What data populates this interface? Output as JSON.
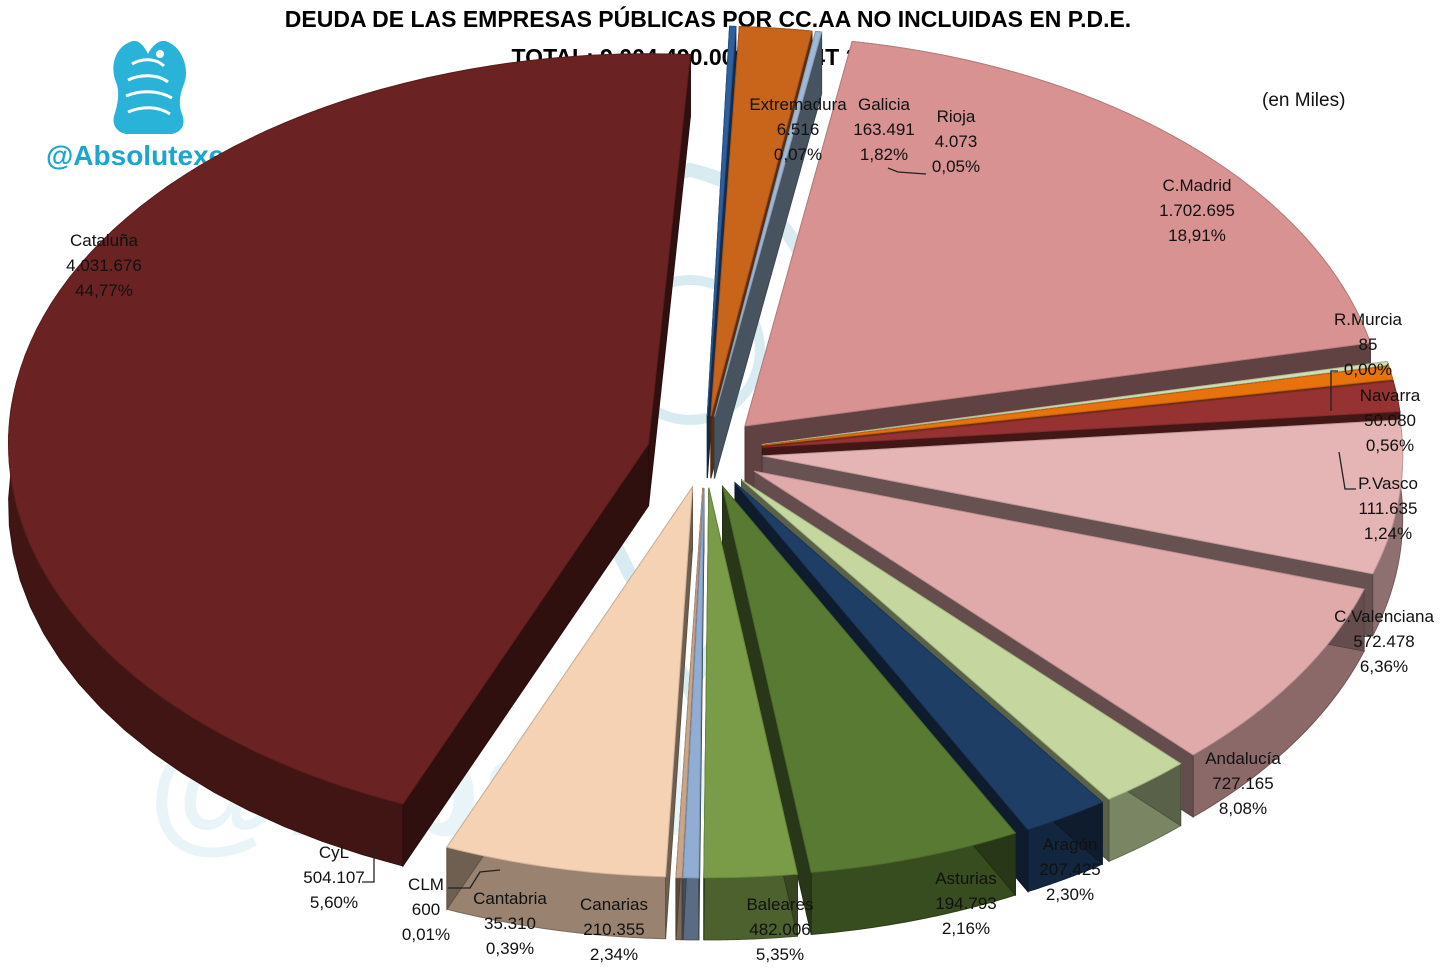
{
  "title": "DEUDA DE LAS EMPRESAS PÚBLICAS POR CC.AA NO INCLUIDAS EN P.D.E.",
  "subtitle": "TOTAL: 9.004.490.000Mill€ (4T 2013)",
  "units_note": "(en Miles)",
  "watermark": "@Absolutexe",
  "chart_data": {
    "type": "pie",
    "title": "DEUDA DE LAS EMPRESAS PÚBLICAS POR CC.AA NO INCLUIDAS EN P.D.E.",
    "subtitle": "TOTAL: 9.004.490.000Mill€ (4T 2013)",
    "units": "(en Miles)",
    "exploded": true,
    "three_d": true,
    "slices": [
      {
        "name": "Extremadura",
        "value_label": "6.516",
        "value": 6516,
        "pct_label": "0,07%",
        "color": "#2e5f9e"
      },
      {
        "name": "Galicia",
        "value_label": "163.491",
        "value": 163491,
        "pct_label": "1,82%",
        "color": "#c8651b"
      },
      {
        "name": "Rioja",
        "value_label": "4.073",
        "value": 4073,
        "pct_label": "0,05%",
        "color": "#9fb8d6"
      },
      {
        "name": "C.Madrid",
        "value_label": "1.702.695",
        "value": 1702695,
        "pct_label": "18,91%",
        "color": "#d89292"
      },
      {
        "name": "R.Murcia",
        "value_label": "85",
        "value": 85,
        "pct_label": "0,00%",
        "color": "#cfe0b8"
      },
      {
        "name": "Navarra",
        "value_label": "50.080",
        "value": 50080,
        "pct_label": "0,56%",
        "color": "#e8720c"
      },
      {
        "name": "P.Vasco",
        "value_label": "111.635",
        "value": 111635,
        "pct_label": "1,24%",
        "color": "#963232"
      },
      {
        "name": "C.Valenciana",
        "value_label": "572.478",
        "value": 572478,
        "pct_label": "6,36%",
        "color": "#e5b5b5"
      },
      {
        "name": "Andalucía",
        "value_label": "727.165",
        "value": 727165,
        "pct_label": "8,08%",
        "color": "#e0aaaa"
      },
      {
        "name": "Aragón",
        "value_label": "207.425",
        "value": 207425,
        "pct_label": "2,30%",
        "color": "#c5d79f"
      },
      {
        "name": "Asturias",
        "value_label": "194.793",
        "value": 194793,
        "pct_label": "2,16%",
        "color": "#1f3e66"
      },
      {
        "name": "Baleares",
        "value_label": "482.006",
        "value": 482006,
        "pct_label": "5,35%",
        "color": "#587a32"
      },
      {
        "name": "Canarias",
        "value_label": "210.355",
        "value": 210355,
        "pct_label": "2,34%",
        "color": "#7a9c48"
      },
      {
        "name": "Cantabria",
        "value_label": "35.310",
        "value": 35310,
        "pct_label": "0,39%",
        "color": "#92add3"
      },
      {
        "name": "CLM",
        "value_label": "600",
        "value": 600,
        "pct_label": "0,01%",
        "color": "#c9a58a"
      },
      {
        "name": "CyL",
        "value_label": "504.107",
        "value": 504107,
        "pct_label": "5,60%",
        "color": "#f6d2b4"
      },
      {
        "name": "Cataluña",
        "value_label": "4.031.676",
        "value": 4031676,
        "pct_label": "44,77%",
        "color": "#6b2222"
      }
    ]
  }
}
